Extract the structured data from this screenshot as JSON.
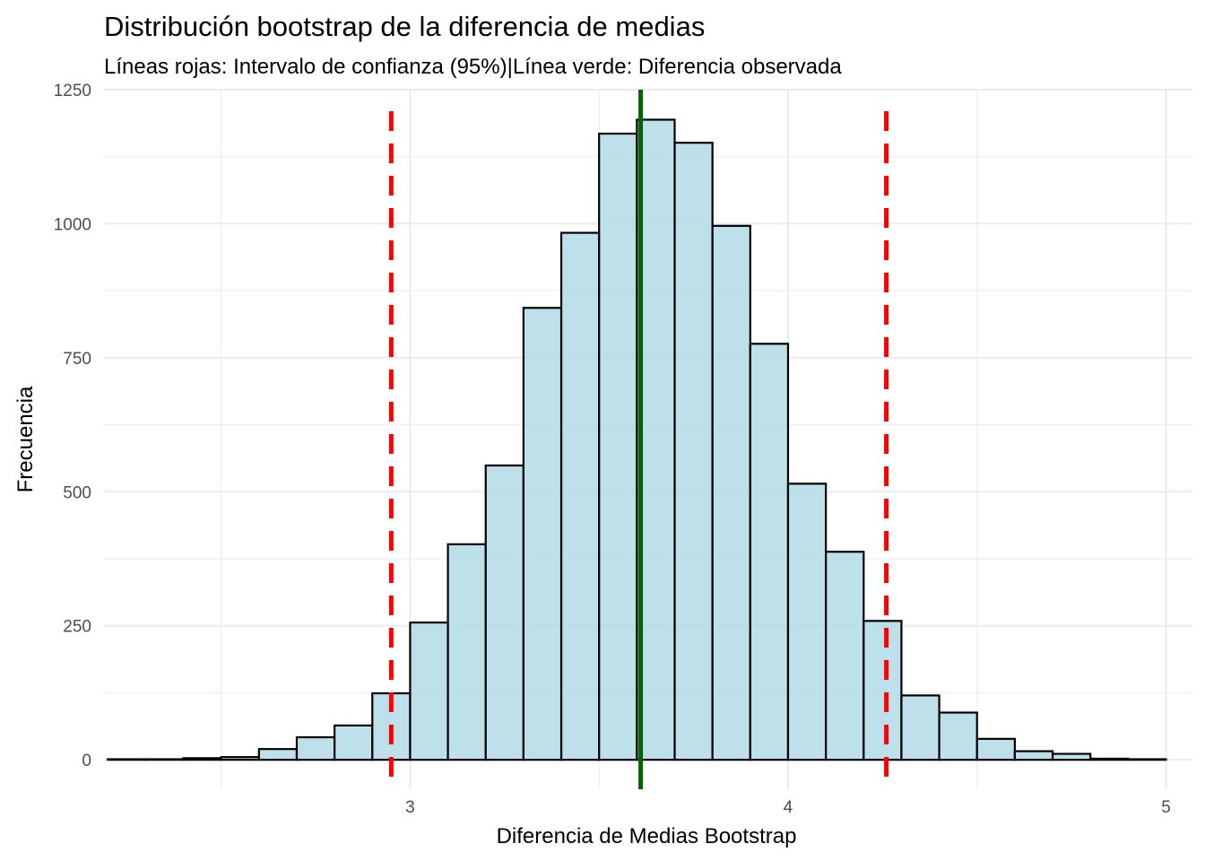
{
  "chart_data": {
    "type": "bar",
    "title": "Distribución bootstrap de la diferencia de medias",
    "subtitle": "Líneas rojas: Intervalo de confianza (95%)|Línea verde: Diferencia observada",
    "xlabel": "Diferencia de Medias Bootstrap",
    "ylabel": "Frecuencia",
    "xlim": [
      2.19,
      5.07
    ],
    "ylim": [
      -55,
      1250
    ],
    "x_ticks": [
      3,
      4,
      5
    ],
    "x_tick_labels": [
      "3",
      "4",
      "5"
    ],
    "y_ticks": [
      0,
      250,
      500,
      750,
      1000,
      1250
    ],
    "y_tick_labels": [
      "0",
      "250",
      "500",
      "750",
      "1000",
      "1250"
    ],
    "grid": true,
    "bin_width": 0.1,
    "bin_centers": [
      2.25,
      2.35,
      2.45,
      2.55,
      2.65,
      2.75,
      2.85,
      2.95,
      3.05,
      3.15,
      3.25,
      3.35,
      3.45,
      3.55,
      3.65,
      3.75,
      3.85,
      3.95,
      4.05,
      4.15,
      4.25,
      4.35,
      4.45,
      4.55,
      4.65,
      4.75,
      4.85,
      4.95
    ],
    "values": [
      1,
      1,
      3,
      5,
      20,
      42,
      64,
      124,
      256,
      402,
      549,
      843,
      983,
      1168,
      1194,
      1151,
      996,
      776,
      515,
      388,
      259,
      120,
      88,
      39,
      16,
      11,
      2,
      1
    ],
    "ci_lines": [
      2.95,
      4.26
    ],
    "observed_line": 3.61,
    "colors": {
      "bar_fill": "#add8e6",
      "bar_stroke": "#000000",
      "ci_line": "#ff0000",
      "observed_line": "#006400",
      "grid": "#ebebeb"
    }
  }
}
